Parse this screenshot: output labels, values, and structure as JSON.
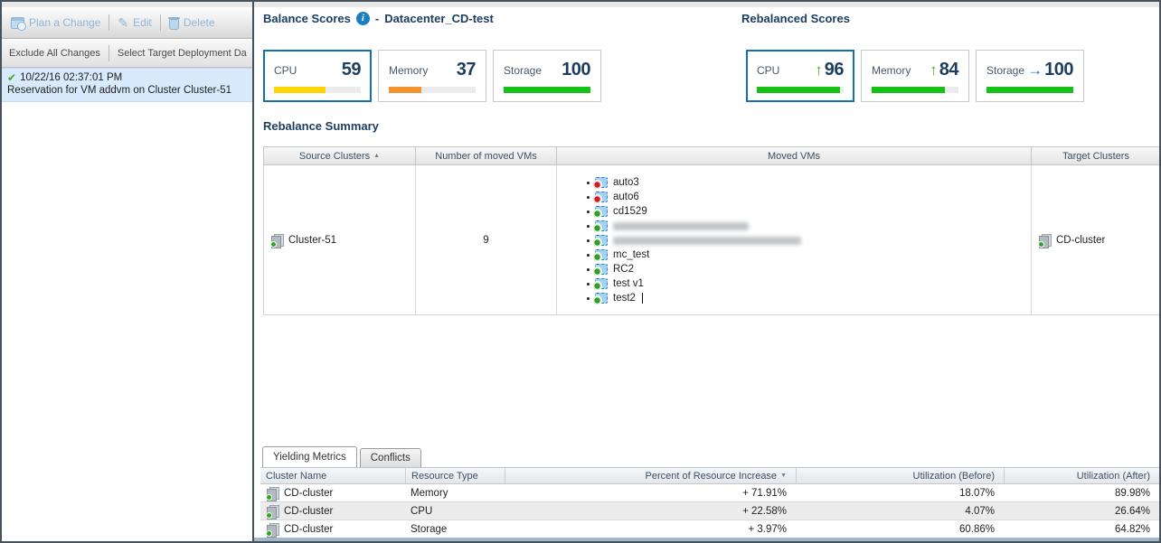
{
  "colors": {
    "accent_selected_border": "#0d72ae",
    "bar_yellow": "#ffd400",
    "bar_orange": "#f6932c",
    "bar_green": "#16c116",
    "trend_up_green": "#58a618",
    "trend_right_blue": "#1173c2",
    "info_icon_blue": "#1b7ec2",
    "selected_item_bg": "#d9eafc"
  },
  "icons": {
    "info": "i",
    "check": "✔",
    "pencil": "✎",
    "sort_asc": "▲",
    "sort_desc": "▼",
    "trend_up": "↑",
    "trend_right": "→"
  },
  "left_panel": {
    "toolbar": {
      "plan": "Plan a Change",
      "edit": "Edit",
      "delete": "Delete"
    },
    "actions": {
      "exclude": "Exclude All Changes",
      "select_target": "Select Target Deployment Da"
    },
    "change_item": {
      "timestamp": "10/22/16 02:37:01 PM",
      "description": "Reservation for VM addvm on Cluster Cluster-51",
      "selected": true
    }
  },
  "balance": {
    "title": "Balance Scores",
    "separator": "-",
    "datacenter": "Datacenter_CD-test",
    "cards": [
      {
        "label": "CPU",
        "value": 59,
        "bar_color": "#ffd400",
        "selected": true
      },
      {
        "label": "Memory",
        "value": 37,
        "bar_color": "#f6932c",
        "selected": false
      },
      {
        "label": "Storage",
        "value": 100,
        "bar_color": "#16c116",
        "selected": false
      }
    ]
  },
  "rebalanced": {
    "title": "Rebalanced Scores",
    "cards": [
      {
        "label": "CPU",
        "value": 96,
        "trend": "up",
        "bar_color": "#16c116",
        "selected": true
      },
      {
        "label": "Memory",
        "value": 84,
        "trend": "up",
        "bar_color": "#16c116",
        "selected": false
      },
      {
        "label": "Storage",
        "value": 100,
        "trend": "right",
        "bar_color": "#16c116",
        "selected": false
      }
    ]
  },
  "summary": {
    "title": "Rebalance Summary",
    "columns": [
      "Source Clusters",
      "Number of moved VMs",
      "Moved VMs",
      "Target Clusters"
    ],
    "sort": {
      "column": "Source Clusters",
      "direction": "asc"
    },
    "row": {
      "source_cluster": "Cluster-51",
      "moved_count": "9",
      "target_cluster": "CD-cluster",
      "moved_vms": [
        {
          "name": "auto3",
          "power": "off"
        },
        {
          "name": "auto6",
          "power": "off"
        },
        {
          "name": "cd1529",
          "power": "on"
        },
        {
          "name": "",
          "power": "on",
          "redacted": true
        },
        {
          "name": "",
          "power": "on",
          "redacted": true
        },
        {
          "name": "mc_test",
          "power": "on"
        },
        {
          "name": "RC2",
          "power": "on"
        },
        {
          "name": "test v1",
          "power": "on"
        },
        {
          "name": "test2",
          "power": "on"
        }
      ]
    }
  },
  "tabs": [
    {
      "label": "Yielding Metrics",
      "active": true
    },
    {
      "label": "Conflicts",
      "active": false
    }
  ],
  "metrics": {
    "columns": [
      "Cluster Name",
      "Resource Type",
      "Percent of Resource Increase",
      "Utilization (Before)",
      "Utilization (After)"
    ],
    "sort": {
      "column": "Percent of Resource Increase",
      "direction": "desc"
    },
    "rows": [
      {
        "cluster": "CD-cluster",
        "resource": "Memory",
        "increase": "+ 71.91%",
        "before": "18.07%",
        "after": "89.98%"
      },
      {
        "cluster": "CD-cluster",
        "resource": "CPU",
        "increase": "+ 22.58%",
        "before": "4.07%",
        "after": "26.64%"
      },
      {
        "cluster": "CD-cluster",
        "resource": "Storage",
        "increase": "+ 3.97%",
        "before": "60.86%",
        "after": "64.82%"
      }
    ]
  }
}
